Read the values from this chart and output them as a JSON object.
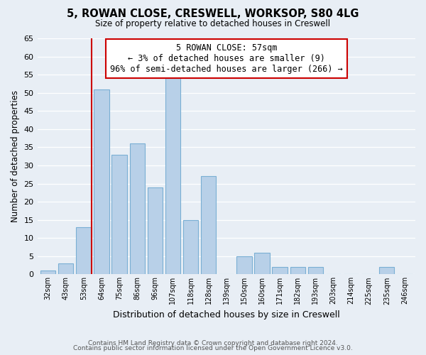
{
  "title": "5, ROWAN CLOSE, CRESWELL, WORKSOP, S80 4LG",
  "subtitle": "Size of property relative to detached houses in Creswell",
  "xlabel": "Distribution of detached houses by size in Creswell",
  "ylabel": "Number of detached properties",
  "footer_lines": [
    "Contains HM Land Registry data © Crown copyright and database right 2024.",
    "Contains public sector information licensed under the Open Government Licence v3.0."
  ],
  "categories": [
    "32sqm",
    "43sqm",
    "53sqm",
    "64sqm",
    "75sqm",
    "86sqm",
    "96sqm",
    "107sqm",
    "118sqm",
    "128sqm",
    "139sqm",
    "150sqm",
    "160sqm",
    "171sqm",
    "182sqm",
    "193sqm",
    "203sqm",
    "214sqm",
    "225sqm",
    "235sqm",
    "246sqm"
  ],
  "values": [
    1,
    3,
    13,
    51,
    33,
    36,
    24,
    54,
    15,
    27,
    0,
    5,
    6,
    2,
    2,
    2,
    0,
    0,
    0,
    2,
    0
  ],
  "bar_color": "#b8d0e8",
  "bar_edge_color": "#7aafd4",
  "highlight_index": 2,
  "highlight_line_color": "#cc0000",
  "ylim": [
    0,
    65
  ],
  "yticks": [
    0,
    5,
    10,
    15,
    20,
    25,
    30,
    35,
    40,
    45,
    50,
    55,
    60,
    65
  ],
  "annotation_line0": "5 ROWAN CLOSE: 57sqm",
  "annotation_line1": "← 3% of detached houses are smaller (9)",
  "annotation_line2": "96% of semi-detached houses are larger (266) →",
  "annotation_box_color": "#ffffff",
  "annotation_box_edge": "#cc0000",
  "bg_color": "#e8eef5"
}
